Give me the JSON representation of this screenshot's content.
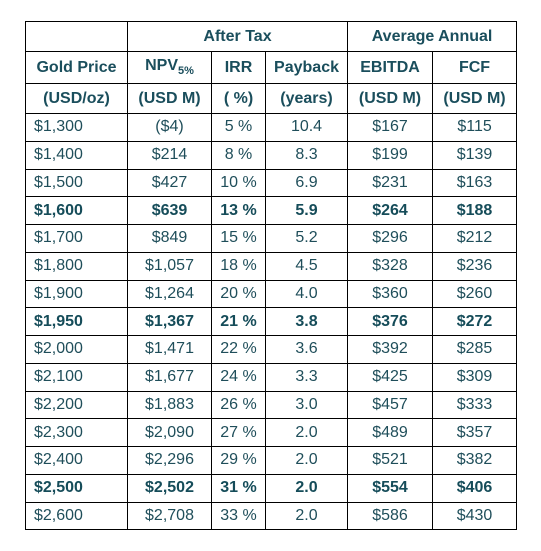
{
  "header": {
    "after_tax": "After Tax",
    "average_annual": "Average Annual"
  },
  "columns": [
    {
      "name": "Gold Price",
      "unit": "(USD/oz)"
    },
    {
      "name": "NPV",
      "sub": "5%",
      "unit": "(USD M)"
    },
    {
      "name": "IRR",
      "unit": "( %)"
    },
    {
      "name": "Payback",
      "unit": "(years)"
    },
    {
      "name": "EBITDA",
      "unit": "(USD M)"
    },
    {
      "name": "FCF",
      "unit": "(USD M)"
    }
  ],
  "rows": [
    {
      "bold": false,
      "cells": [
        "$1,300",
        "($4)",
        "5 %",
        "10.4",
        "$167",
        "$115"
      ]
    },
    {
      "bold": false,
      "cells": [
        "$1,400",
        "$214",
        "8 %",
        "8.3",
        "$199",
        "$139"
      ]
    },
    {
      "bold": false,
      "cells": [
        "$1,500",
        "$427",
        "10 %",
        "6.9",
        "$231",
        "$163"
      ]
    },
    {
      "bold": true,
      "cells": [
        "$1,600",
        "$639",
        "13 %",
        "5.9",
        "$264",
        "$188"
      ]
    },
    {
      "bold": false,
      "cells": [
        "$1,700",
        "$849",
        "15 %",
        "5.2",
        "$296",
        "$212"
      ]
    },
    {
      "bold": false,
      "cells": [
        "$1,800",
        "$1,057",
        "18 %",
        "4.5",
        "$328",
        "$236"
      ]
    },
    {
      "bold": false,
      "cells": [
        "$1,900",
        "$1,264",
        "20 %",
        "4.0",
        "$360",
        "$260"
      ]
    },
    {
      "bold": true,
      "cells": [
        "$1,950",
        "$1,367",
        "21 %",
        "3.8",
        "$376",
        "$272"
      ]
    },
    {
      "bold": false,
      "cells": [
        "$2,000",
        "$1,471",
        "22 %",
        "3.6",
        "$392",
        "$285"
      ]
    },
    {
      "bold": false,
      "cells": [
        "$2,100",
        "$1,677",
        "24 %",
        "3.3",
        "$425",
        "$309"
      ]
    },
    {
      "bold": false,
      "cells": [
        "$2,200",
        "$1,883",
        "26 %",
        "3.0",
        "$457",
        "$333"
      ]
    },
    {
      "bold": false,
      "cells": [
        "$2,300",
        "$2,090",
        "27 %",
        "2.0",
        "$489",
        "$357"
      ]
    },
    {
      "bold": false,
      "cells": [
        "$2,400",
        "$2,296",
        "29 %",
        "2.0",
        "$521",
        "$382"
      ]
    },
    {
      "bold": true,
      "cells": [
        "$2,500",
        "$2,502",
        "31 %",
        "2.0",
        "$554",
        "$406"
      ]
    },
    {
      "bold": false,
      "cells": [
        "$2,600",
        "$2,708",
        "33 %",
        "2.0",
        "$586",
        "$430"
      ]
    }
  ]
}
